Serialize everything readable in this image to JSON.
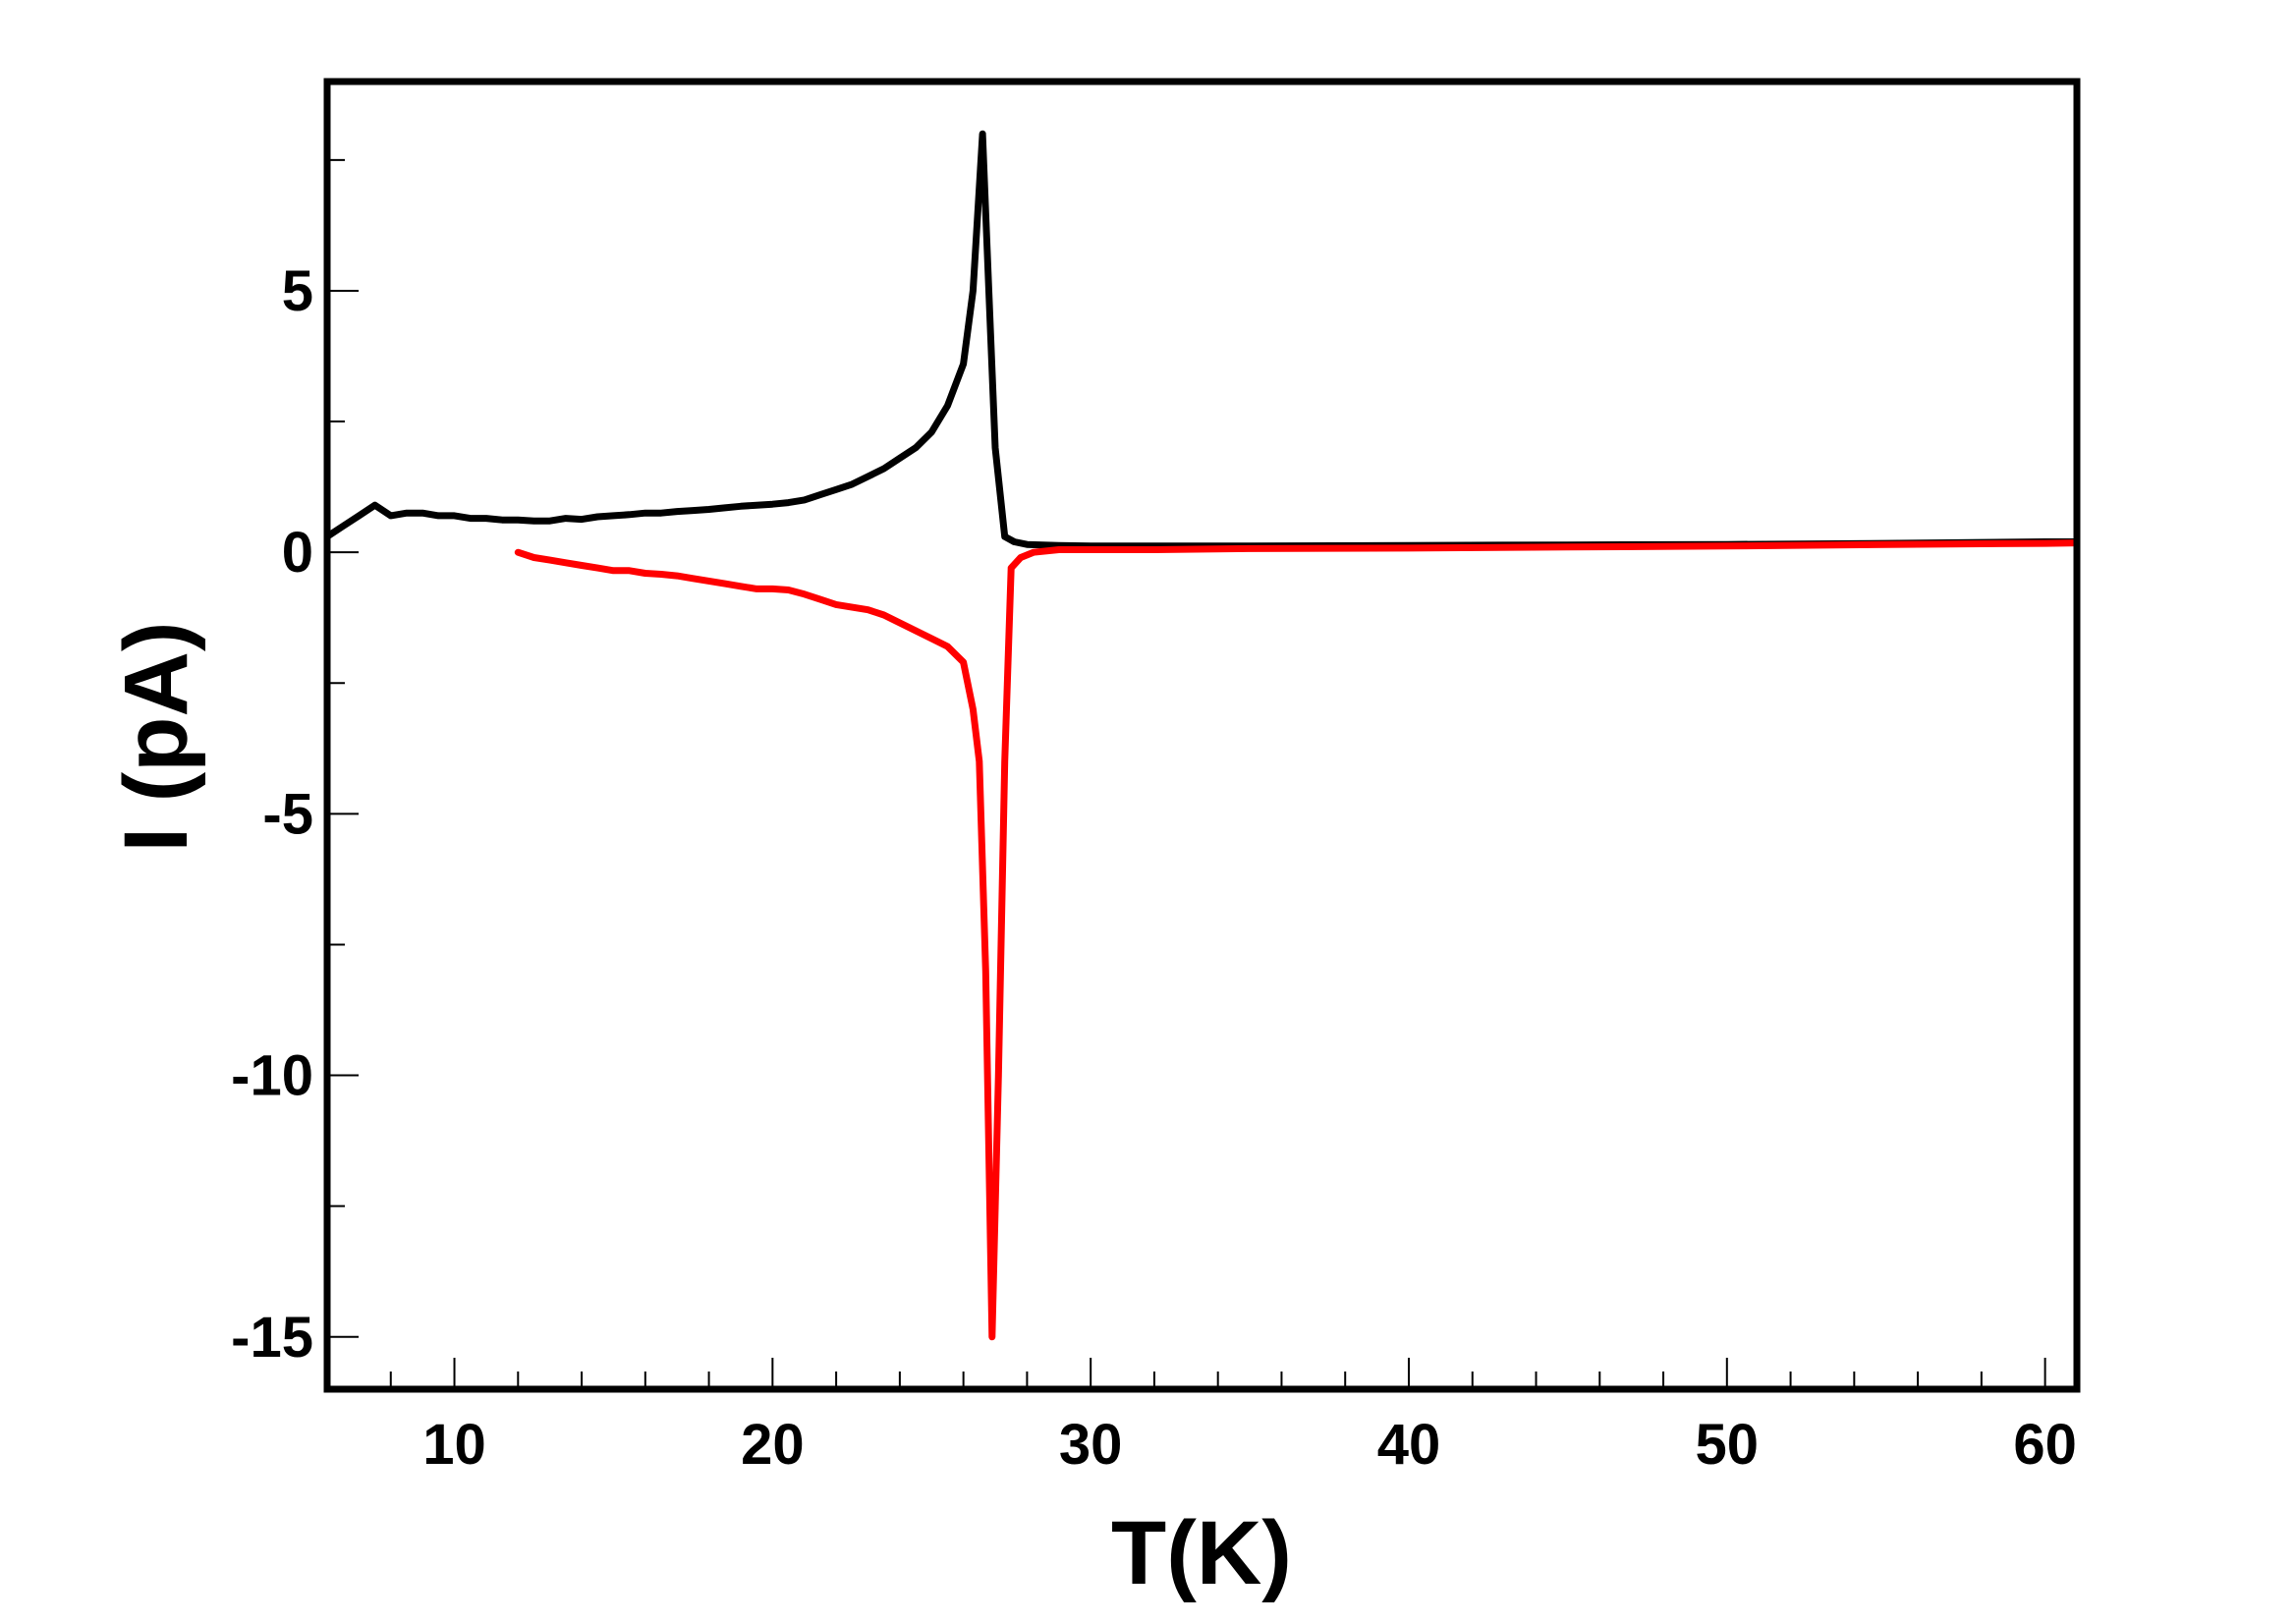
{
  "chart_data": {
    "type": "line",
    "title": "",
    "xlabel": "T(K)",
    "ylabel": "I (pA)",
    "xlim": [
      6,
      61
    ],
    "ylim": [
      -16,
      9
    ],
    "x_ticks": [
      10,
      20,
      30,
      40,
      50,
      60
    ],
    "x_tick_labels": [
      "10",
      "20",
      "30",
      "40",
      "50",
      "60"
    ],
    "x_minor_step": 2,
    "y_ticks": [
      5,
      0,
      -5,
      -10,
      -15
    ],
    "y_tick_labels": [
      "5",
      "0",
      "-5",
      "-10",
      "-15"
    ],
    "y_minor_step": 2.5,
    "grid": false,
    "legend": "none",
    "series": [
      {
        "color": "#000000",
        "x": [
          6.0,
          6.5,
          7.0,
          7.5,
          8.0,
          8.5,
          9.0,
          9.5,
          10.0,
          10.5,
          11.0,
          11.5,
          12.0,
          12.5,
          13.0,
          13.5,
          14.0,
          14.5,
          15.0,
          15.5,
          16.0,
          16.5,
          17.0,
          17.5,
          18.0,
          18.5,
          19.0,
          19.5,
          20.0,
          20.5,
          21.0,
          21.5,
          22.0,
          22.5,
          23.0,
          23.5,
          24.0,
          24.5,
          25.0,
          25.5,
          26.0,
          26.3,
          26.6,
          26.8,
          27.0,
          27.3,
          27.6,
          28.0,
          29,
          30,
          32,
          35,
          40,
          45,
          50,
          55,
          60,
          61
        ],
        "y": [
          0.3,
          0.5,
          0.7,
          0.9,
          0.7,
          0.75,
          0.75,
          0.7,
          0.7,
          0.65,
          0.65,
          0.62,
          0.62,
          0.6,
          0.6,
          0.65,
          0.63,
          0.68,
          0.7,
          0.72,
          0.75,
          0.75,
          0.78,
          0.8,
          0.82,
          0.85,
          0.88,
          0.9,
          0.92,
          0.95,
          1.0,
          1.1,
          1.2,
          1.3,
          1.45,
          1.6,
          1.8,
          2.0,
          2.3,
          2.8,
          3.6,
          5.0,
          8.0,
          5.0,
          2.0,
          0.3,
          0.2,
          0.15,
          0.13,
          0.12,
          0.12,
          0.12,
          0.13,
          0.14,
          0.15,
          0.17,
          0.2,
          0.2
        ]
      },
      {
        "color": "#ff0000",
        "x": [
          12.0,
          12.5,
          13.0,
          13.5,
          14.0,
          14.5,
          15.0,
          15.5,
          16.0,
          16.5,
          17.0,
          17.5,
          18.0,
          18.5,
          19.0,
          19.5,
          20.0,
          20.5,
          21.0,
          21.5,
          22.0,
          22.5,
          23.0,
          23.5,
          24.0,
          24.5,
          25.0,
          25.5,
          26.0,
          26.3,
          26.5,
          26.7,
          26.9,
          27.1,
          27.3,
          27.5,
          27.8,
          28.2,
          29,
          30,
          32,
          35,
          40,
          45,
          50,
          55,
          60,
          61
        ],
        "y": [
          0.0,
          -0.1,
          -0.15,
          -0.2,
          -0.25,
          -0.3,
          -0.35,
          -0.35,
          -0.4,
          -0.42,
          -0.45,
          -0.5,
          -0.55,
          -0.6,
          -0.65,
          -0.7,
          -0.7,
          -0.72,
          -0.8,
          -0.9,
          -1.0,
          -1.05,
          -1.1,
          -1.2,
          -1.35,
          -1.5,
          -1.65,
          -1.8,
          -2.1,
          -3.0,
          -4.0,
          -8.0,
          -15.0,
          -10.0,
          -4.0,
          -0.3,
          -0.1,
          0.0,
          0.05,
          0.05,
          0.05,
          0.07,
          0.08,
          0.1,
          0.12,
          0.15,
          0.17,
          0.18
        ]
      }
    ]
  }
}
